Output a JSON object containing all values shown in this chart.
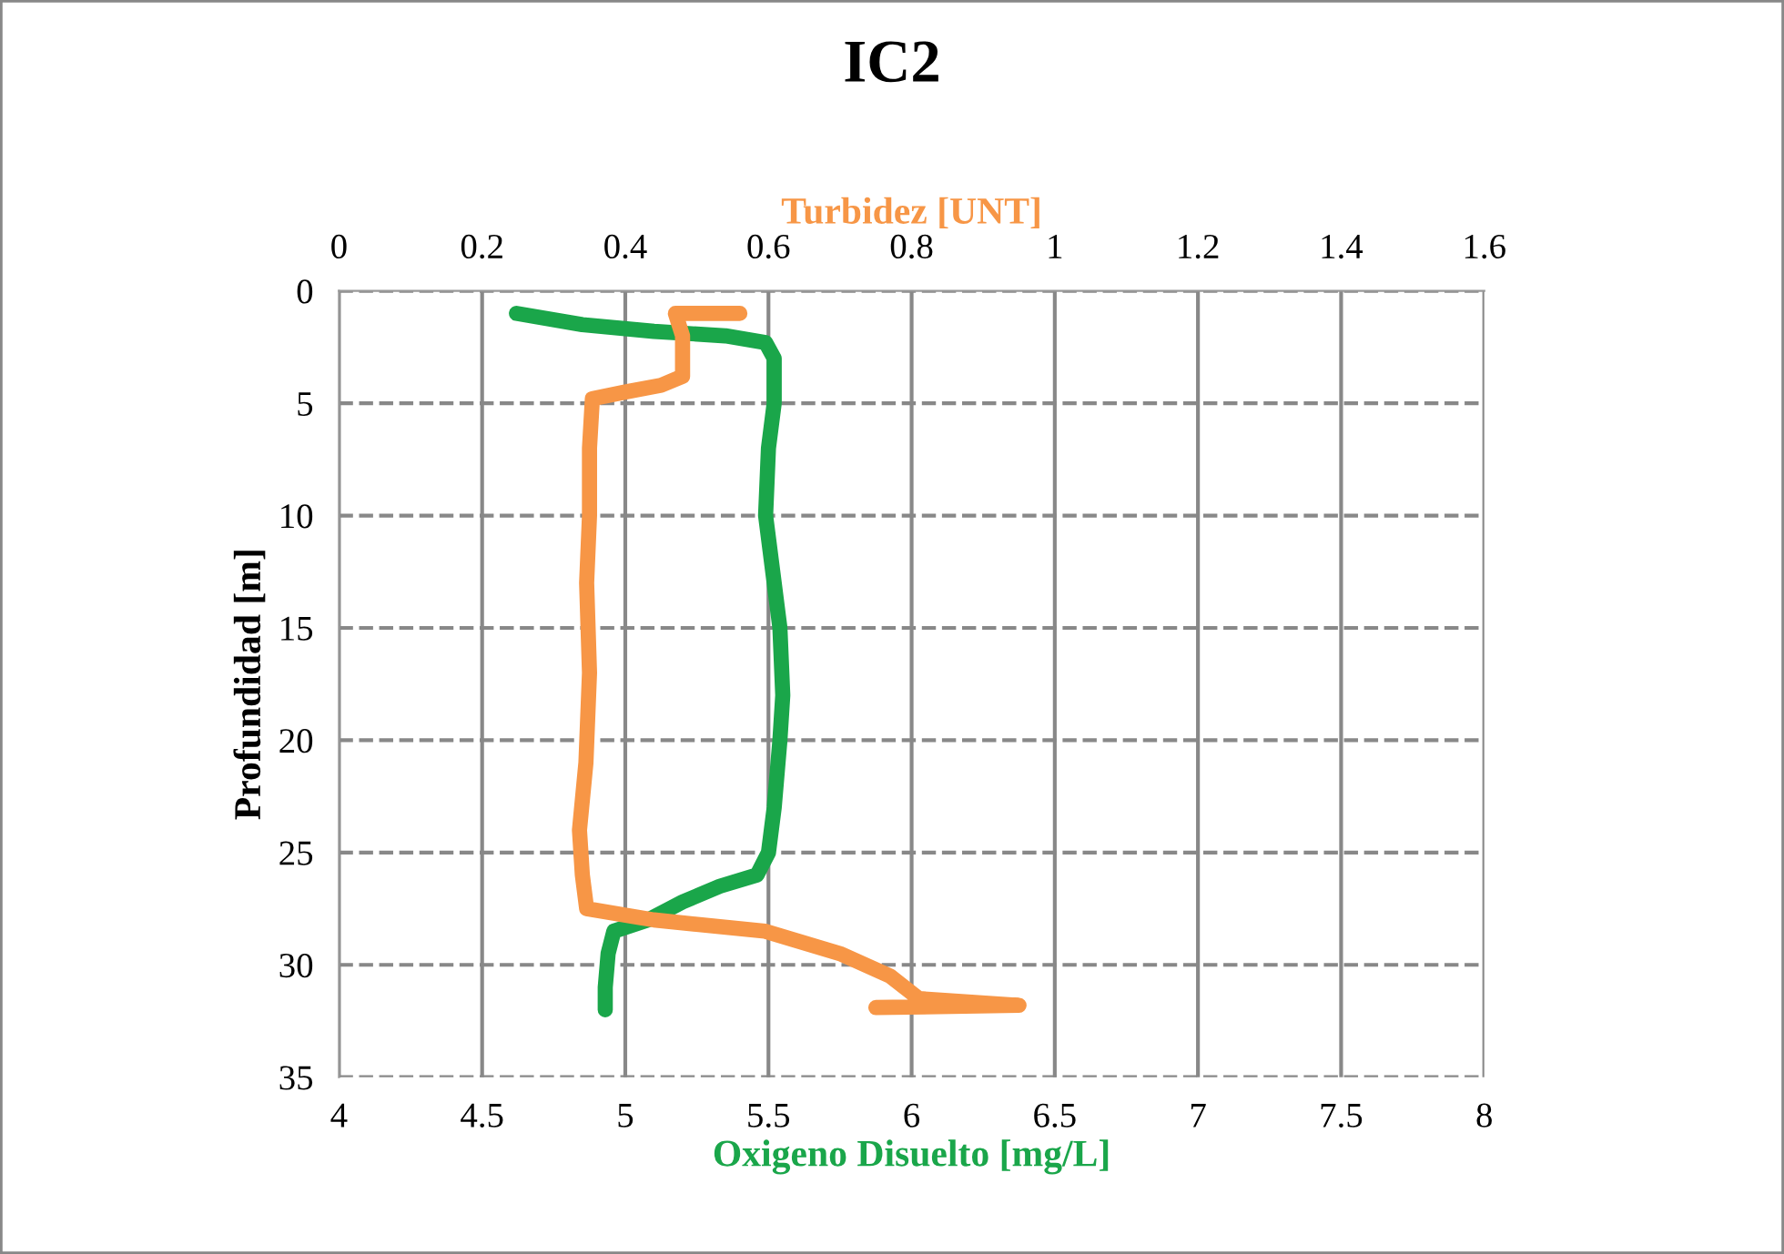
{
  "chart_data": {
    "type": "line",
    "title": "IC2",
    "xlabel": "Oxigeno Disuelto [mg/L]",
    "x2label": "Turbidez [UNT]",
    "ylabel": "Profundidad [m]",
    "xlim": [
      4,
      8
    ],
    "xticks": [
      4,
      4.5,
      5,
      5.5,
      6,
      6.5,
      7,
      7.5,
      8
    ],
    "x2lim": [
      0,
      1.6
    ],
    "x2ticks": [
      0,
      0.2,
      0.4,
      0.6,
      0.8,
      1,
      1.2,
      1.4,
      1.6
    ],
    "ylim": [
      35,
      0
    ],
    "yticks": [
      0,
      5,
      10,
      15,
      20,
      25,
      30,
      35
    ],
    "grid": true,
    "marker": "none",
    "line_style": "solid",
    "series": [
      {
        "color": "#1aa64a",
        "x": [
          4.62,
          4.85,
          5.1,
          5.35,
          5.49,
          5.52,
          5.52,
          5.5,
          5.49,
          5.52,
          5.54,
          5.55,
          5.54,
          5.52,
          5.5,
          5.46,
          5.33,
          5.2,
          5.08,
          4.96,
          4.94,
          4.93,
          4.93
        ],
        "values": [
          1,
          1.5,
          1.8,
          2,
          2.3,
          3,
          5,
          7,
          10,
          13,
          15,
          18,
          20,
          23,
          25,
          26,
          26.5,
          27.2,
          28,
          28.5,
          29.5,
          31,
          32
        ]
      },
      {
        "color": "#f79646",
        "axis": "x2",
        "x": [
          0.56,
          0.47,
          0.48,
          0.48,
          0.45,
          0.4,
          0.354,
          0.35,
          0.35,
          0.346,
          0.35,
          0.345,
          0.336,
          0.34,
          0.346,
          0.44,
          0.595,
          0.7,
          0.77,
          0.81,
          0.95,
          0.75
        ],
        "values": [
          1,
          1,
          2,
          3.8,
          4.2,
          4.5,
          4.8,
          7,
          10,
          13,
          17,
          21,
          24,
          26,
          27.5,
          28,
          28.5,
          29.5,
          30.5,
          31.5,
          31.8,
          31.9
        ]
      }
    ]
  }
}
